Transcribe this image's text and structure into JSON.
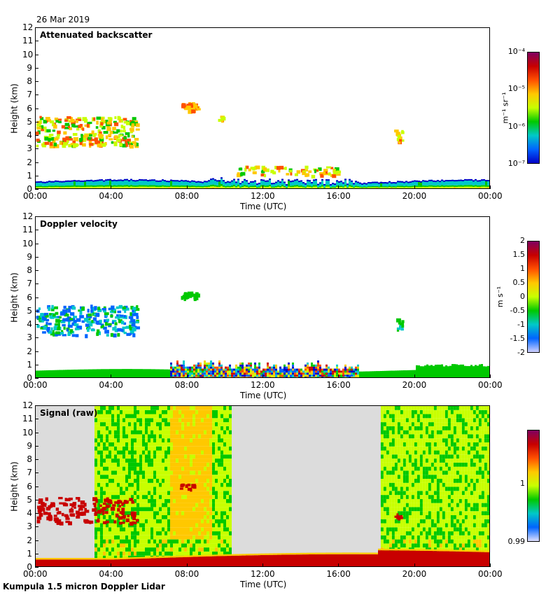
{
  "date_label": "26 Mar 2019",
  "footer_label": "Kumpula 1.5 micron Doppler Lidar",
  "colors": {
    "jet": [
      "#ffffff",
      "#0000c8",
      "#0064ff",
      "#00c8c8",
      "#00c800",
      "#c8ff00",
      "#ffc800",
      "#ff5000",
      "#c80000",
      "#800060"
    ],
    "raw_background": "#dcdcdc"
  },
  "chart_data": [
    {
      "type": "heatmap",
      "title": "Attenuated backscatter",
      "xlabel": "Time (UTC)",
      "ylabel": "Height (km)",
      "xticks": [
        "00:00",
        "04:00",
        "08:00",
        "12:00",
        "16:00",
        "20:00",
        "00:00"
      ],
      "x_range_hours": [
        0,
        24
      ],
      "yticks": [
        "0",
        "1",
        "2",
        "3",
        "4",
        "5",
        "6",
        "7",
        "8",
        "9",
        "10",
        "11",
        "12"
      ],
      "ylim": [
        0,
        12
      ],
      "colorbar": {
        "label": "m⁻¹ sr⁻¹",
        "ticks": [
          "10⁻⁴",
          "10⁻⁵",
          "10⁻⁶",
          "10⁻⁷"
        ],
        "range": [
          1e-07,
          0.0001
        ],
        "scale": "log"
      },
      "features": [
        {
          "name": "boundary layer aerosol",
          "start_h": 0,
          "end_h": 24,
          "bottom_km": 0,
          "top_km": 0.6
        },
        {
          "name": "mid-level cloud",
          "start_h": 0,
          "end_h": 5.4,
          "bottom_km": 3.2,
          "top_km": 5.6
        },
        {
          "name": "cloud patch",
          "start_h": 7.6,
          "end_h": 8.5,
          "bottom_km": 5.9,
          "top_km": 6.5
        },
        {
          "name": "cloud patch",
          "start_h": 18.9,
          "end_h": 19.3,
          "bottom_km": 3.6,
          "top_km": 4.5
        }
      ]
    },
    {
      "type": "heatmap",
      "title": "Doppler velocity",
      "xlabel": "Time (UTC)",
      "ylabel": "Height (km)",
      "xticks": [
        "00:00",
        "04:00",
        "08:00",
        "12:00",
        "16:00",
        "20:00",
        "00:00"
      ],
      "x_range_hours": [
        0,
        24
      ],
      "yticks": [
        "0",
        "1",
        "2",
        "3",
        "4",
        "5",
        "6",
        "7",
        "8",
        "9",
        "10",
        "11",
        "12"
      ],
      "ylim": [
        0,
        12
      ],
      "colorbar": {
        "label": "m s⁻¹",
        "ticks": [
          "2",
          "1.5",
          "1",
          "0.5",
          "0",
          "-0.5",
          "-1",
          "-1.5",
          "-2"
        ],
        "range": [
          -2,
          2
        ],
        "scale": "linear"
      }
    },
    {
      "type": "heatmap",
      "title": "Signal (raw)",
      "xlabel": "Time (UTC)",
      "ylabel": "Height (km)",
      "xticks": [
        "00:00",
        "04:00",
        "08:00",
        "12:00",
        "16:00",
        "20:00",
        "00:00"
      ],
      "x_range_hours": [
        0,
        24
      ],
      "yticks": [
        "0",
        "1",
        "2",
        "3",
        "4",
        "5",
        "6",
        "7",
        "8",
        "9",
        "10",
        "11",
        "12"
      ],
      "ylim": [
        0,
        12
      ],
      "colorbar": {
        "label": "",
        "ticks": [
          "1",
          "0.99"
        ],
        "range": [
          0.99,
          1.01
        ],
        "scale": "linear"
      },
      "missing_intervals_h": [
        [
          0,
          3.1
        ],
        [
          10.2,
          18.2
        ]
      ]
    }
  ]
}
